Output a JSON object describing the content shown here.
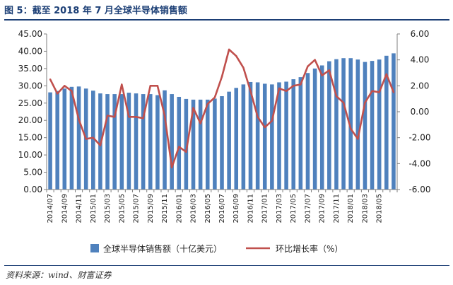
{
  "header": {
    "title": "图 5：截至 2018 年 7 月全球半导体销售额"
  },
  "footer": {
    "source": "资料来源：wind、财富证券"
  },
  "colors": {
    "bar": "#4f81bd",
    "line": "#c0504d",
    "title": "#1b3e75",
    "axis": "#7f7f7f"
  },
  "chart_data": {
    "type": "bar+line",
    "title": "图 5：截至 2018 年 7 月全球半导体销售额",
    "categories": [
      "2014/07",
      "2014/08",
      "2014/09",
      "2014/10",
      "2014/11",
      "2014/12",
      "2015/01",
      "2015/02",
      "2015/03",
      "2015/04",
      "2015/05",
      "2015/06",
      "2015/07",
      "2015/08",
      "2015/09",
      "2015/10",
      "2015/11",
      "2015/12",
      "2016/01",
      "2016/02",
      "2016/03",
      "2016/04",
      "2016/05",
      "2016/06",
      "2016/07",
      "2016/08",
      "2016/09",
      "2016/10",
      "2016/11",
      "2016/12",
      "2017/01",
      "2017/02",
      "2017/03",
      "2017/04",
      "2017/05",
      "2017/06",
      "2017/07",
      "2017/08",
      "2017/09",
      "2017/10",
      "2017/11",
      "2017/12",
      "2018/01",
      "2018/02",
      "2018/03",
      "2018/04",
      "2018/05",
      "2018/06",
      "2018/07"
    ],
    "tick_labels": [
      "2014/07",
      "2014/09",
      "2014/11",
      "2015/01",
      "2015/03",
      "2015/05",
      "2015/07",
      "2015/09",
      "2015/11",
      "2016/01",
      "2016/03",
      "2016/05",
      "2016/07",
      "2016/09",
      "2016/11",
      "2017/01",
      "2017/03",
      "2017/05",
      "2017/07",
      "2017/09",
      "2017/11",
      "2018/01",
      "2018/03",
      "2018/05"
    ],
    "series": [
      {
        "name": "全球半导体销售额（十亿美元）",
        "type": "bar",
        "axis": "left",
        "values": [
          28.1,
          28.5,
          29.2,
          29.7,
          29.8,
          29.2,
          28.6,
          27.8,
          27.6,
          27.6,
          27.6,
          28.0,
          27.8,
          27.6,
          27.6,
          27.3,
          28.7,
          27.6,
          26.8,
          26.2,
          26.0,
          26.0,
          26.0,
          26.3,
          27.0,
          28.3,
          29.4,
          30.4,
          31.1,
          31.0,
          30.6,
          30.4,
          31.0,
          31.2,
          31.9,
          32.5,
          33.7,
          35.0,
          35.9,
          37.1,
          37.7,
          38.0,
          38.0,
          37.6,
          36.9,
          37.2,
          37.6,
          38.7,
          39.4
        ]
      },
      {
        "name": "环比增长率（%）",
        "type": "line",
        "axis": "right",
        "values": [
          2.5,
          1.4,
          2.0,
          1.6,
          -0.6,
          -2.1,
          -2.0,
          -2.6,
          -0.3,
          -0.4,
          2.1,
          -0.4,
          -0.4,
          -0.5,
          2.0,
          2.0,
          -0.3,
          -4.3,
          -2.7,
          -3.1,
          0.3,
          -0.9,
          0.6,
          1.1,
          2.7,
          4.8,
          4.3,
          3.4,
          1.6,
          -0.4,
          -1.2,
          -0.7,
          1.8,
          1.6,
          2.0,
          2.1,
          3.5,
          4.0,
          2.8,
          3.2,
          1.2,
          0.7,
          -1.3,
          -2.1,
          0.7,
          1.6,
          1.5,
          2.9,
          1.5
        ]
      }
    ],
    "y_left": {
      "min": 0,
      "max": 45,
      "step": 5,
      "labels": [
        "0.00",
        "5.00",
        "10.00",
        "15.00",
        "20.00",
        "25.00",
        "30.00",
        "35.00",
        "40.00",
        "45.00"
      ]
    },
    "y_right": {
      "min": -6,
      "max": 6,
      "step": 2,
      "labels": [
        "-6.00",
        "-4.00",
        "-2.00",
        "0.00",
        "2.00",
        "4.00",
        "6.00"
      ]
    },
    "grid": false,
    "legend_position": "bottom"
  }
}
